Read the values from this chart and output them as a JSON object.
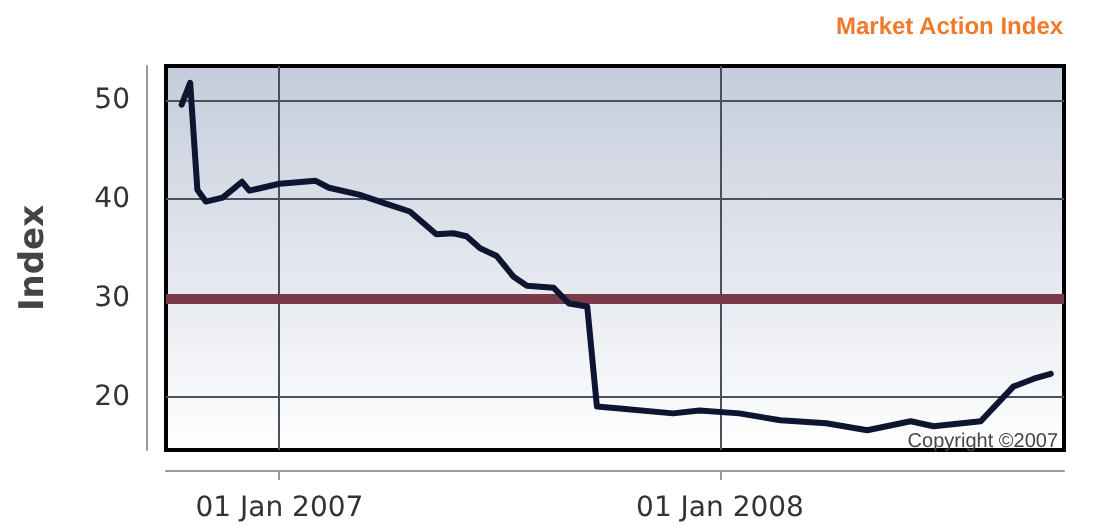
{
  "chart_data": {
    "type": "line",
    "title": "Market Action Index",
    "ylabel": "Index",
    "x": [
      "2006-10-12",
      "2006-10-19",
      "2006-10-25",
      "2006-11-01",
      "2006-11-15",
      "2006-12-01",
      "2006-12-07",
      "2007-01-01",
      "2007-01-31",
      "2007-02-11",
      "2007-03-08",
      "2007-03-30",
      "2007-04-19",
      "2007-05-11",
      "2007-05-25",
      "2007-06-05",
      "2007-06-16",
      "2007-06-30",
      "2007-07-14",
      "2007-07-25",
      "2007-08-16",
      "2007-08-29",
      "2007-09-13",
      "2007-09-21",
      "2007-10-10",
      "2007-11-23",
      "2007-12-15",
      "2008-01-17",
      "2008-02-20",
      "2008-03-29",
      "2008-05-02",
      "2008-06-07",
      "2008-06-26",
      "2008-08-04",
      "2008-08-31",
      "2008-09-17",
      "2008-10-01"
    ],
    "series": [
      {
        "color": "#0d1530",
        "values": [
          49.5,
          51.7,
          40.9,
          39.7,
          40.1,
          41.7,
          40.8,
          41.5,
          41.8,
          41.1,
          40.4,
          39.5,
          38.7,
          36.4,
          36.5,
          36.2,
          35.0,
          34.2,
          32.1,
          31.2,
          31.0,
          29.4,
          29.1,
          19.0,
          18.8,
          18.3,
          18.6,
          18.3,
          17.6,
          17.3,
          16.6,
          17.5,
          17.0,
          17.5,
          21.0,
          21.8,
          22.3
        ]
      }
    ],
    "xlim": [
      "2006-09-29",
      "2008-10-12"
    ],
    "xticks": [
      {
        "value": "2007-01-01",
        "label": "01 Jan 2007"
      },
      {
        "value": "2008-01-01",
        "label": "01 Jan 2008"
      }
    ],
    "ylim": [
      14.6,
      53.4
    ],
    "yticks": [
      20,
      30,
      40,
      50
    ],
    "ref_lines": [
      {
        "axis": "y",
        "value": 30,
        "color": "#7b3a49"
      }
    ],
    "annotations": [
      "Copyright ©2007"
    ],
    "grid": true,
    "marker": "none",
    "line_style": "solid"
  }
}
